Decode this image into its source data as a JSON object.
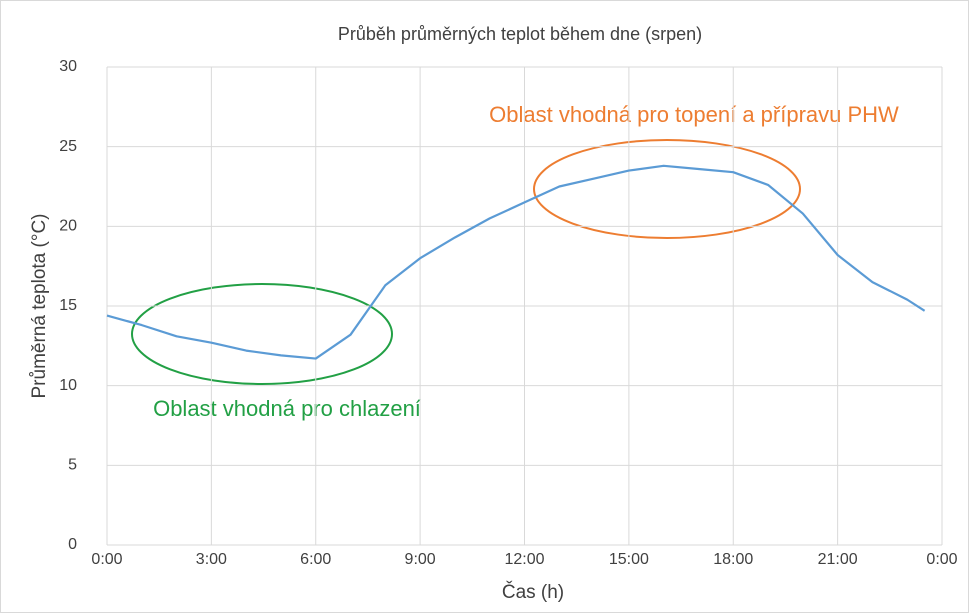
{
  "chart_data": {
    "type": "line",
    "title": "Průběh průměrných teplot během dne (srpen)",
    "x_label": "Čas (h)",
    "y_label": "Průměrná teplota (°C)",
    "x": [
      0,
      1,
      2,
      3,
      4,
      5,
      6,
      7,
      8,
      9,
      10,
      11,
      12,
      13,
      14,
      15,
      16,
      17,
      18,
      19,
      20,
      21,
      22,
      23,
      23.5
    ],
    "series": [
      {
        "name": "Průměrná teplota",
        "color": "#5b9bd5",
        "values": [
          14.4,
          13.8,
          13.1,
          12.7,
          12.2,
          11.9,
          11.7,
          13.2,
          16.3,
          18.0,
          19.3,
          20.5,
          21.5,
          22.5,
          23.0,
          23.5,
          23.8,
          23.6,
          23.4,
          22.6,
          20.8,
          18.2,
          16.5,
          15.4,
          14.7
        ]
      }
    ],
    "xlim": [
      0,
      24
    ],
    "xticks": [
      {
        "value": 0,
        "label": "0:00"
      },
      {
        "value": 3,
        "label": "3:00"
      },
      {
        "value": 6,
        "label": "6:00"
      },
      {
        "value": 9,
        "label": "9:00"
      },
      {
        "value": 12,
        "label": "12:00"
      },
      {
        "value": 15,
        "label": "15:00"
      },
      {
        "value": 18,
        "label": "18:00"
      },
      {
        "value": 21,
        "label": "21:00"
      },
      {
        "value": 24,
        "label": "0:00"
      }
    ],
    "ylim": [
      0,
      30
    ],
    "yticks": [
      0,
      5,
      10,
      15,
      20,
      25,
      30
    ],
    "grid": true,
    "annotations": [
      {
        "text": "Oblast vhodná pro topení a přípravu PHW",
        "color": "#ed7d31"
      },
      {
        "text": "Oblast vhodná pro chlazení",
        "color": "#22a045"
      }
    ]
  }
}
